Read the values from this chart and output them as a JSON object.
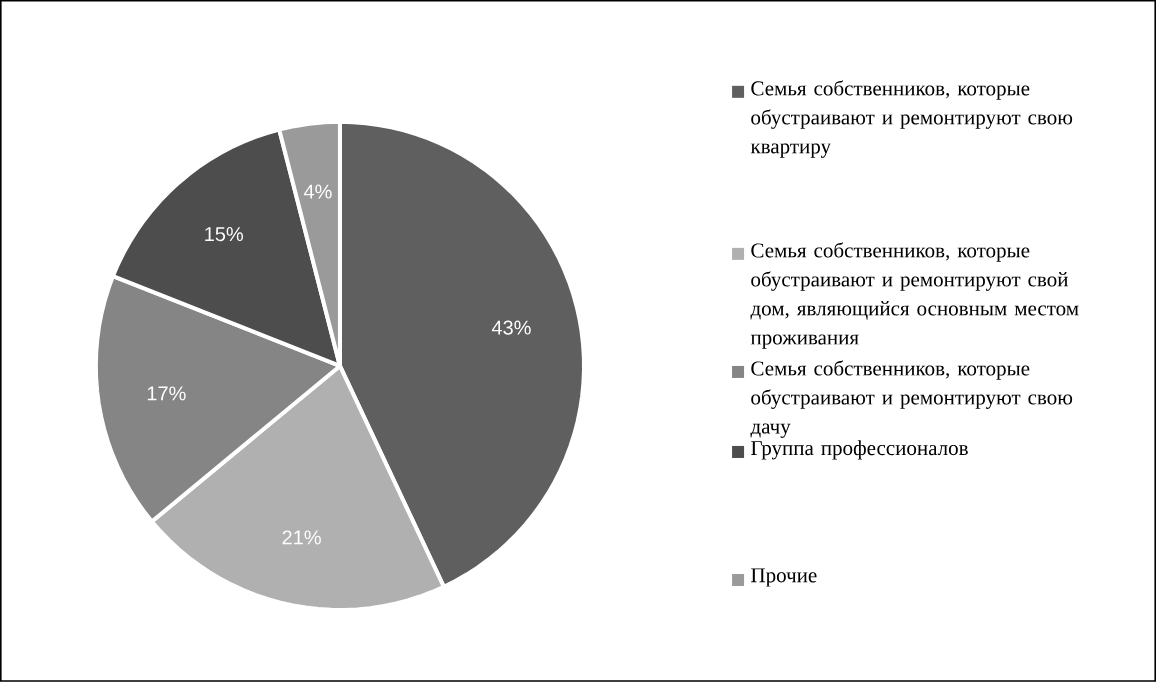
{
  "chart_data": {
    "type": "pie",
    "categories": [
      "Семья собственников, которые обустраивают и ремонтируют свою квартиру",
      "Семья собственников, которые обустраивают и ремонтируют свой дом, являющийся основным местом проживания",
      "Семья собственников, которые обустраивают и ремонтируют свою дачу",
      "Группа профессионалов",
      "Прочие"
    ],
    "values": [
      43,
      21,
      17,
      15,
      4
    ],
    "colors": [
      "#5f5f5f",
      "#b0b0b0",
      "#858585",
      "#4d4d4d",
      "#9a9a9a"
    ],
    "value_labels": [
      "43%",
      "21%",
      "17%",
      "15%",
      "4%"
    ],
    "legend": "right"
  }
}
